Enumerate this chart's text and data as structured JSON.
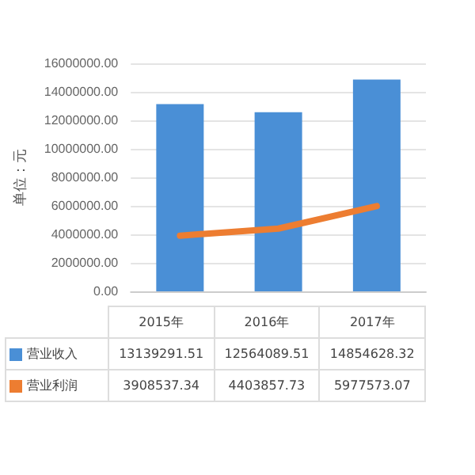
{
  "chart_data": {
    "type": "bar",
    "ylabel": "单位：元",
    "categories": [
      "2015年",
      "2016年",
      "2017年"
    ],
    "series": [
      {
        "name": "营业收入",
        "color": "#4a8fd6",
        "values": [
          13139291.51,
          12564089.51,
          14854628.32
        ]
      },
      {
        "name": "营业利润",
        "type": "line",
        "color": "#ed7d31",
        "values": [
          3908537.34,
          4403857.73,
          5977573.07
        ]
      }
    ],
    "ylim": [
      0,
      16000000
    ],
    "yticks": [
      {
        "value": 0,
        "label": "0.00"
      },
      {
        "value": 2000000,
        "label": "2000000.00"
      },
      {
        "value": 4000000,
        "label": "4000000.00"
      },
      {
        "value": 6000000,
        "label": "6000000.00"
      },
      {
        "value": 8000000,
        "label": "8000000.00"
      },
      {
        "value": 10000000,
        "label": "10000000.00"
      },
      {
        "value": 12000000,
        "label": "12000000.00"
      },
      {
        "value": 14000000,
        "label": "14000000.00"
      },
      {
        "value": 16000000,
        "label": "16000000.00"
      }
    ],
    "grid": "y",
    "marker": "none",
    "legend": "bottom",
    "data_labels": true
  }
}
